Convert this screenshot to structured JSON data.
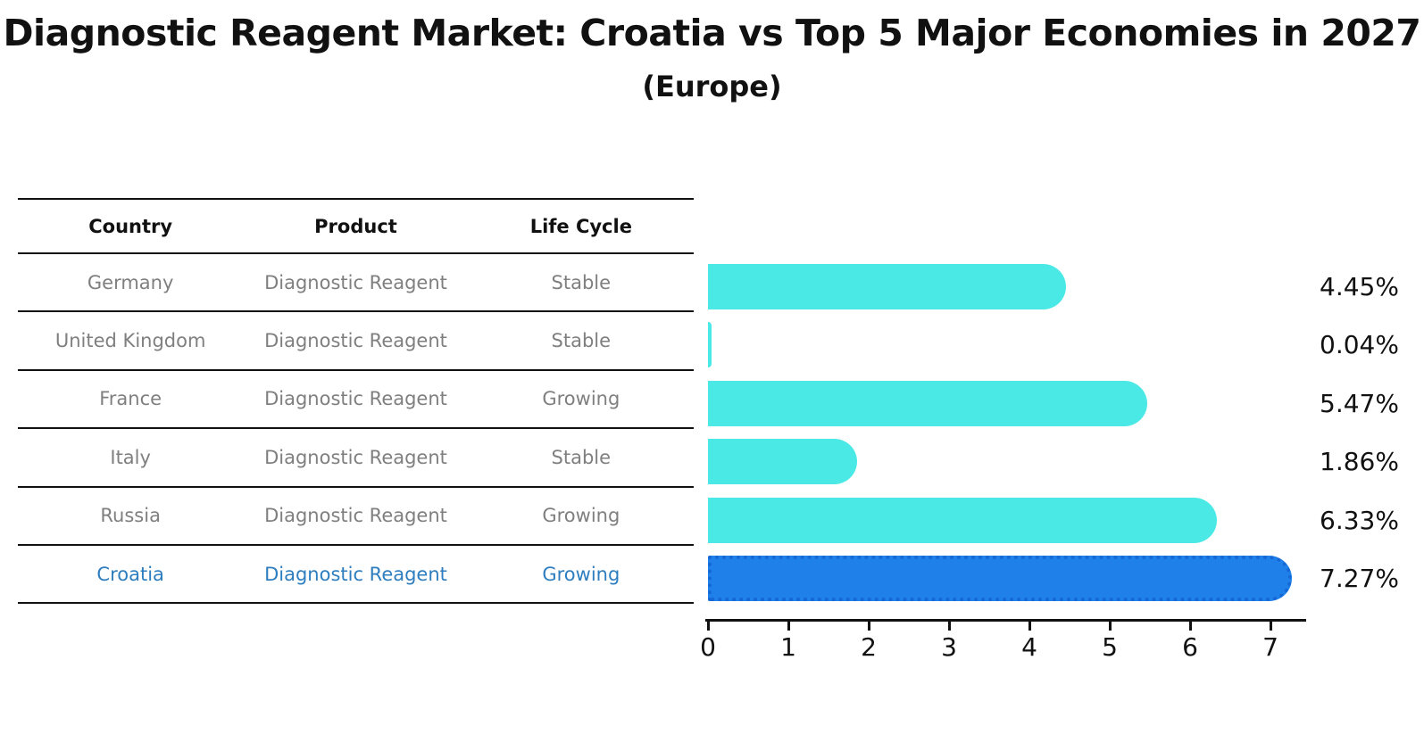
{
  "page": {
    "title": "Diagnostic Reagent Market: Croatia vs Top 5 Major Economies in 2027",
    "subtitle": "(Europe)"
  },
  "table": {
    "headers": [
      "Country",
      "Product",
      "Life Cycle"
    ],
    "rows": [
      {
        "country": "Germany",
        "product": "Diagnostic Reagent",
        "life_cycle": "Stable",
        "highlight": false
      },
      {
        "country": "United Kingdom",
        "product": "Diagnostic Reagent",
        "life_cycle": "Stable",
        "highlight": false
      },
      {
        "country": "France",
        "product": "Diagnostic Reagent",
        "life_cycle": "Growing",
        "highlight": false
      },
      {
        "country": "Italy",
        "product": "Diagnostic Reagent",
        "life_cycle": "Stable",
        "highlight": false
      },
      {
        "country": "Russia",
        "product": "Diagnostic Reagent",
        "life_cycle": "Growing",
        "highlight": false
      },
      {
        "country": "Croatia",
        "product": "Diagnostic Reagent",
        "life_cycle": "Growing",
        "highlight": true
      }
    ]
  },
  "chart_data": {
    "type": "bar",
    "orientation": "horizontal",
    "title": "Diagnostic Reagent Market: Croatia vs Top 5 Major Economies in 2027",
    "subtitle": "(Europe)",
    "categories": [
      "Germany",
      "United Kingdom",
      "France",
      "Italy",
      "Russia",
      "Croatia"
    ],
    "values": [
      4.45,
      0.04,
      5.47,
      1.86,
      6.33,
      7.27
    ],
    "value_labels": [
      "4.45%",
      "0.04%",
      "5.47%",
      "1.86%",
      "6.33%",
      "7.27%"
    ],
    "xlabel": "",
    "ylabel": "",
    "xlim": [
      0,
      7.5
    ],
    "xticks": [
      0,
      1,
      2,
      3,
      4,
      5,
      6,
      7
    ],
    "grid": false,
    "legend": "none",
    "bar_color": "#4AE9E6",
    "highlight_bar_color": "#1E80E8",
    "highlight_border_color": "#1568D6",
    "highlight_border_style": "dotted",
    "highlight_index": 5
  },
  "colors": {
    "text_primary": "#111111",
    "table_row_text": "#7f7f7f",
    "highlight_text": "#2E7EBF",
    "axis": "#111111"
  }
}
